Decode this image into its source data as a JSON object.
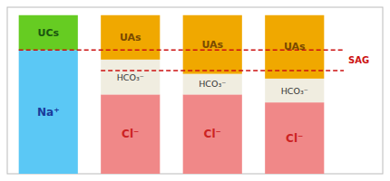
{
  "chart_data": {
    "type": "bar",
    "stacked": true,
    "categories": [
      null,
      null,
      null,
      null
    ],
    "series": [
      {
        "name": "Na⁺",
        "color": "#5bc8f5",
        "values": [
          7.8,
          null,
          null,
          null
        ]
      },
      {
        "name": "UCs",
        "color": "#66cc22",
        "values": [
          2.2,
          null,
          null,
          null
        ]
      },
      {
        "name": "Cl⁻",
        "color": "#f08888",
        "values": [
          null,
          5.0,
          5.0,
          4.5
        ]
      },
      {
        "name": "HCO₃⁻",
        "color": "#f0ede0",
        "values": [
          null,
          2.2,
          1.3,
          1.5
        ]
      },
      {
        "name": "UAs",
        "color": "#f0a800",
        "values": [
          null,
          2.8,
          3.7,
          4.0
        ]
      }
    ],
    "ylim": [
      0,
      10.5
    ],
    "yticks": [],
    "tick_labels": false,
    "grid": false,
    "reference_lines": [
      {
        "y": 7.8,
        "from_category": 0
      },
      {
        "y": 6.5,
        "from_category": 1
      }
    ],
    "reference_label": "SAG",
    "reference_color": "#cc1111",
    "line_style": "dashed"
  }
}
